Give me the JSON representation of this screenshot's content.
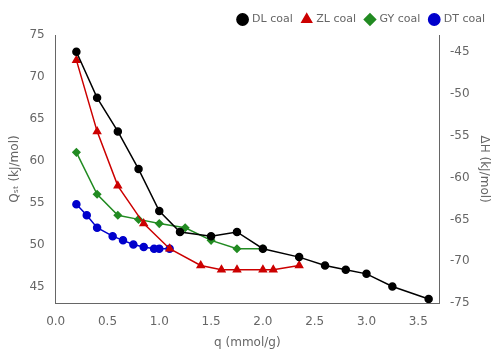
{
  "chart_data": {
    "type": "line",
    "xlabel": "q (mmol/g)",
    "ylabel": "Qₛₜ (kJ/mol)",
    "y2label": "ΔH (kJ/mol)",
    "xlim": [
      0.0,
      3.7
    ],
    "ylim": [
      43,
      75
    ],
    "y2lim": [
      -75,
      -43
    ],
    "xticks": [
      {
        "value": 0.0,
        "label": "0.0"
      },
      0.5,
      {
        "value": 1.0,
        "label": "1.0"
      },
      1.5,
      {
        "value": 2.0,
        "label": "2.0"
      },
      2.5,
      {
        "value": 3.0,
        "label": "3.0"
      },
      3.5
    ],
    "yticks": [
      45,
      50,
      55,
      60,
      65,
      70,
      75
    ],
    "y2ticks": [
      -75,
      -70,
      -65,
      -60,
      -55,
      -50,
      -45
    ],
    "grid": false,
    "legend": "upper right",
    "series": [
      {
        "name": "DL coal",
        "color": "#000000",
        "marker": "circle",
        "x": [
          0.2,
          0.4,
          0.6,
          0.8,
          1.0,
          1.2,
          1.5,
          1.75,
          2.0,
          2.35,
          2.6,
          2.8,
          3.0,
          3.25,
          3.6
        ],
        "values": [
          73.0,
          67.5,
          63.5,
          59.0,
          54.0,
          51.5,
          51.0,
          51.5,
          49.5,
          48.5,
          47.5,
          47.0,
          46.5,
          45.0,
          43.5
        ]
      },
      {
        "name": "ZL coal",
        "color": "#cc0000",
        "marker": "triangle",
        "x": [
          0.2,
          0.4,
          0.6,
          0.85,
          1.1,
          1.4,
          1.6,
          1.75,
          2.0,
          2.1,
          2.35
        ],
        "values": [
          72.0,
          63.5,
          57.0,
          52.5,
          49.5,
          47.5,
          47.0,
          47.0,
          47.0,
          47.0,
          47.5
        ]
      },
      {
        "name": "GY coal",
        "color": "#228B22",
        "marker": "diamond",
        "x": [
          0.2,
          0.4,
          0.6,
          0.8,
          1.0,
          1.25,
          1.5,
          1.75,
          2.0
        ],
        "values": [
          61.0,
          56.0,
          53.5,
          53.0,
          52.5,
          52.0,
          50.5,
          49.5,
          49.5
        ]
      },
      {
        "name": "DT coal",
        "color": "#0000cc",
        "marker": "circle",
        "x": [
          0.2,
          0.3,
          0.4,
          0.55,
          0.65,
          0.75,
          0.85,
          0.95,
          1.0,
          1.1
        ],
        "values": [
          54.8,
          53.5,
          52.0,
          51.0,
          50.5,
          50.0,
          49.7,
          49.5,
          49.5,
          49.5
        ]
      }
    ]
  }
}
